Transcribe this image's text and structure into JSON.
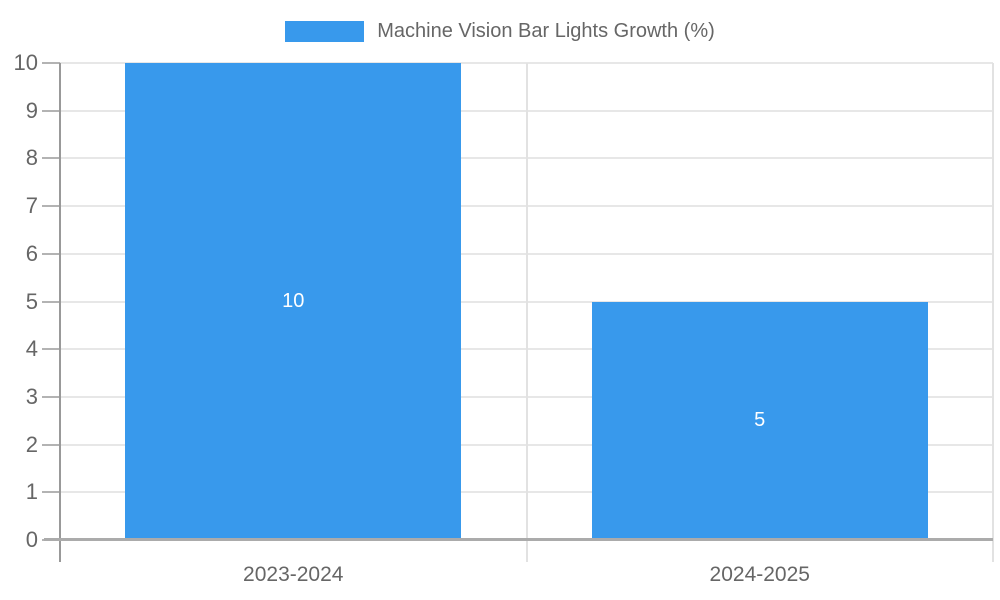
{
  "chart_data": {
    "type": "bar",
    "title": "Machine Vision Bar Lights Growth (%)",
    "categories": [
      "2023-2024",
      "2024-2025"
    ],
    "values": [
      10,
      5
    ],
    "value_labels": [
      "10",
      "5"
    ],
    "xlabel": "",
    "ylabel": "",
    "ylim": [
      0,
      10
    ],
    "yticks": [
      0,
      1,
      2,
      3,
      4,
      5,
      6,
      7,
      8,
      9,
      10
    ],
    "grid": true,
    "legend_position": "top-center",
    "bar_band_fraction": 0.72,
    "colors": {
      "bar": "#3899ec",
      "value_label_text": "#ffffff",
      "axis_text": "#666666",
      "legend_text": "#666666",
      "grid_line": "#e7e7e7",
      "separator_line": "#e2e2e2",
      "y_axis_line": "#999999",
      "x_axis_line": "#ababab",
      "background": "#ffffff"
    }
  }
}
